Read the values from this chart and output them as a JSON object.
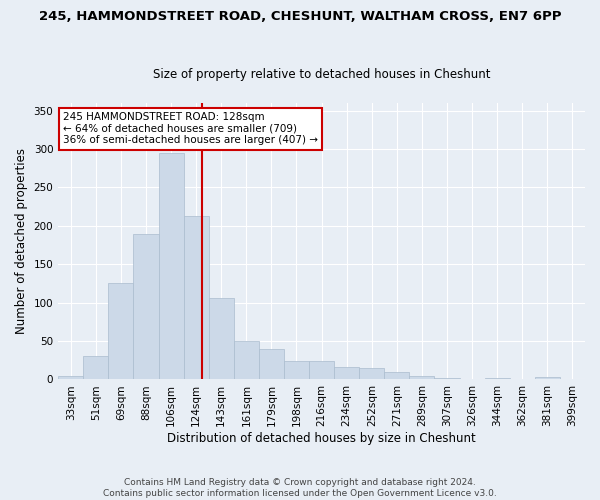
{
  "title": "245, HAMMONDSTREET ROAD, CHESHUNT, WALTHAM CROSS, EN7 6PP",
  "subtitle": "Size of property relative to detached houses in Cheshunt",
  "xlabel": "Distribution of detached houses by size in Cheshunt",
  "ylabel": "Number of detached properties",
  "bar_color": "#ccd9e8",
  "bar_edge_color": "#aabcce",
  "categories": [
    "33sqm",
    "51sqm",
    "69sqm",
    "88sqm",
    "106sqm",
    "124sqm",
    "143sqm",
    "161sqm",
    "179sqm",
    "198sqm",
    "216sqm",
    "234sqm",
    "252sqm",
    "271sqm",
    "289sqm",
    "307sqm",
    "326sqm",
    "344sqm",
    "362sqm",
    "381sqm",
    "399sqm"
  ],
  "values": [
    5,
    30,
    125,
    190,
    295,
    213,
    106,
    50,
    40,
    24,
    24,
    16,
    15,
    10,
    4,
    2,
    1,
    2,
    0,
    3,
    1
  ],
  "vline_color": "#cc0000",
  "annotation_text": "245 HAMMONDSTREET ROAD: 128sqm\n← 64% of detached houses are smaller (709)\n36% of semi-detached houses are larger (407) →",
  "annotation_box_color": "#ffffff",
  "annotation_box_edge_color": "#cc0000",
  "footnote": "Contains HM Land Registry data © Crown copyright and database right 2024.\nContains public sector information licensed under the Open Government Licence v3.0.",
  "ylim": [
    0,
    360
  ],
  "background_color": "#e8eef5",
  "grid_color": "#ffffff",
  "title_fontsize": 9.5,
  "subtitle_fontsize": 8.5,
  "ylabel_fontsize": 8.5,
  "xlabel_fontsize": 8.5,
  "tick_fontsize": 7.5,
  "annot_fontsize": 7.5,
  "footnote_fontsize": 6.5,
  "vline_x": 5.22
}
